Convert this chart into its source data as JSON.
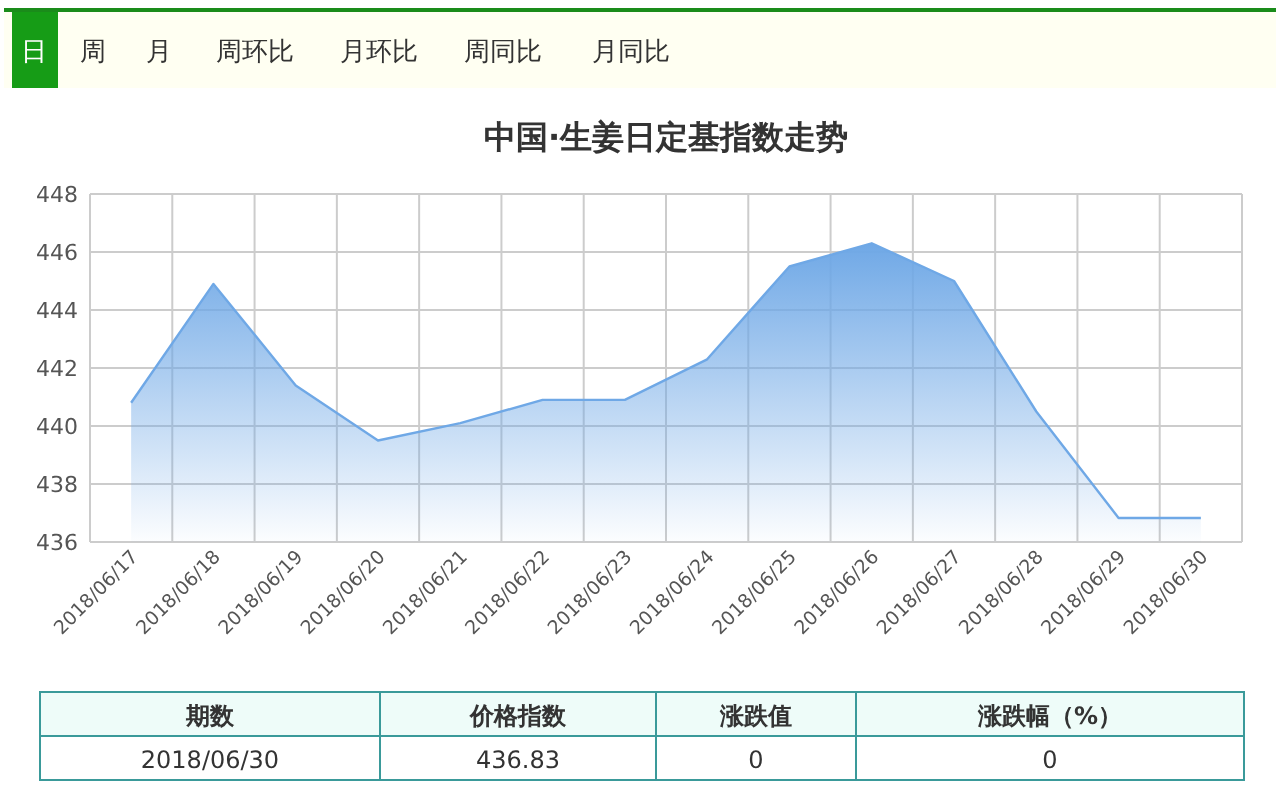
{
  "chart_data": {
    "type": "area",
    "title": "中国·生姜日定基指数走势",
    "categories": [
      "2018/06/17",
      "2018/06/18",
      "2018/06/19",
      "2018/06/20",
      "2018/06/21",
      "2018/06/22",
      "2018/06/23",
      "2018/06/24",
      "2018/06/25",
      "2018/06/26",
      "2018/06/27",
      "2018/06/28",
      "2018/06/29",
      "2018/06/30"
    ],
    "series": [
      {
        "color": "#6fa8e6",
        "values": [
          440.8,
          444.9,
          441.4,
          439.5,
          440.1,
          440.9,
          440.9,
          442.3,
          445.5,
          446.3,
          445.0,
          440.5,
          436.83,
          436.83
        ]
      }
    ],
    "ylim": [
      436,
      448
    ],
    "yticks": [
      436,
      438,
      440,
      442,
      444,
      446,
      448
    ],
    "grid": true,
    "marker": "none",
    "line_style": "solid",
    "annotations": [
      "日",
      "周",
      "月",
      "周环比",
      "月环比",
      "周同比",
      "月同比",
      "期数",
      "价格指数",
      "涨跌值",
      "涨跌幅（%）",
      "2018/06/30",
      "436.83",
      "0",
      "0"
    ]
  }
}
